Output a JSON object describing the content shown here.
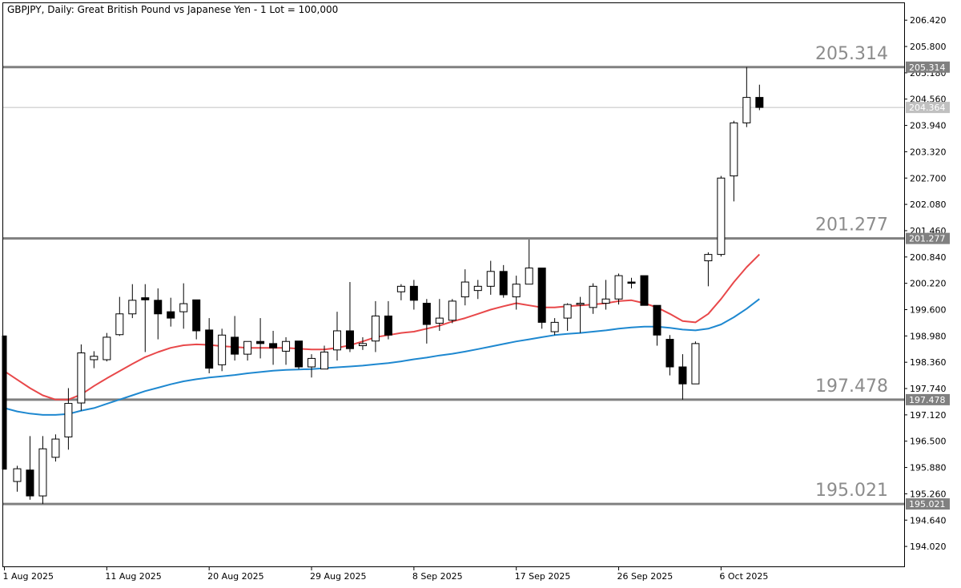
{
  "chart_data": {
    "type": "candlestick",
    "title": "GBPJPY, Daily:  Great British Pound vs Japanese Yen - 1 Lot = 100,000",
    "ylim": [
      193.55,
      206.82
    ],
    "y_ticks": [
      206.42,
      205.8,
      205.18,
      204.56,
      203.94,
      203.32,
      202.7,
      202.08,
      201.46,
      200.84,
      200.22,
      199.6,
      198.98,
      198.36,
      197.74,
      197.12,
      196.5,
      195.88,
      195.26,
      194.64,
      194.02
    ],
    "x_tick_labels": [
      {
        "label": "1 Aug 2025",
        "index": 0
      },
      {
        "label": "11 Aug 2025",
        "index": 8
      },
      {
        "label": "20 Aug 2025",
        "index": 16
      },
      {
        "label": "29 Aug 2025",
        "index": 24
      },
      {
        "label": "8 Sep 2025",
        "index": 32
      },
      {
        "label": "17 Sep 2025",
        "index": 40
      },
      {
        "label": "26 Sep 2025",
        "index": 48
      },
      {
        "label": "6 Oct 2025",
        "index": 56
      }
    ],
    "current_price": 204.364,
    "levels": [
      {
        "value": 205.314,
        "label": "205.314"
      },
      {
        "value": 201.277,
        "label": "201.277"
      },
      {
        "value": 197.478,
        "label": "197.478"
      },
      {
        "value": 195.021,
        "label": "195.021"
      }
    ],
    "candles": [
      {
        "o": 198.98,
        "h": 198.98,
        "l": 195.84,
        "c": 195.84
      },
      {
        "o": 195.55,
        "h": 195.92,
        "l": 195.31,
        "c": 195.85
      },
      {
        "o": 195.82,
        "h": 196.62,
        "l": 195.12,
        "c": 195.21
      },
      {
        "o": 195.21,
        "h": 196.62,
        "l": 195.02,
        "c": 196.32
      },
      {
        "o": 196.12,
        "h": 196.66,
        "l": 196.02,
        "c": 196.55
      },
      {
        "o": 196.6,
        "h": 197.75,
        "l": 196.3,
        "c": 197.39
      },
      {
        "o": 197.4,
        "h": 198.78,
        "l": 197.22,
        "c": 198.58
      },
      {
        "o": 198.42,
        "h": 198.62,
        "l": 198.22,
        "c": 198.5
      },
      {
        "o": 198.42,
        "h": 199.05,
        "l": 198.38,
        "c": 198.95
      },
      {
        "o": 199.01,
        "h": 199.9,
        "l": 198.98,
        "c": 199.5
      },
      {
        "o": 199.5,
        "h": 200.2,
        "l": 199.4,
        "c": 199.82
      },
      {
        "o": 199.88,
        "h": 200.2,
        "l": 198.6,
        "c": 199.83
      },
      {
        "o": 199.82,
        "h": 200.1,
        "l": 198.9,
        "c": 199.5
      },
      {
        "o": 199.55,
        "h": 199.88,
        "l": 199.2,
        "c": 199.4
      },
      {
        "o": 199.55,
        "h": 200.22,
        "l": 199.15,
        "c": 199.74
      },
      {
        "o": 199.83,
        "h": 199.82,
        "l": 198.9,
        "c": 199.1
      },
      {
        "o": 199.12,
        "h": 199.4,
        "l": 198.1,
        "c": 198.22
      },
      {
        "o": 198.3,
        "h": 199.15,
        "l": 198.15,
        "c": 199.0
      },
      {
        "o": 198.95,
        "h": 199.45,
        "l": 198.4,
        "c": 198.55
      },
      {
        "o": 198.55,
        "h": 198.85,
        "l": 198.4,
        "c": 198.85
      },
      {
        "o": 198.85,
        "h": 199.4,
        "l": 198.45,
        "c": 198.8
      },
      {
        "o": 198.8,
        "h": 199.1,
        "l": 198.3,
        "c": 198.7
      },
      {
        "o": 198.62,
        "h": 198.95,
        "l": 198.3,
        "c": 198.85
      },
      {
        "o": 198.86,
        "h": 198.86,
        "l": 198.2,
        "c": 198.25
      },
      {
        "o": 198.25,
        "h": 198.55,
        "l": 198.0,
        "c": 198.45
      },
      {
        "o": 198.2,
        "h": 198.75,
        "l": 198.25,
        "c": 198.6
      },
      {
        "o": 198.65,
        "h": 199.55,
        "l": 198.4,
        "c": 199.1
      },
      {
        "o": 199.1,
        "h": 200.25,
        "l": 198.6,
        "c": 198.68
      },
      {
        "o": 198.75,
        "h": 198.95,
        "l": 198.65,
        "c": 198.8
      },
      {
        "o": 198.86,
        "h": 199.8,
        "l": 198.6,
        "c": 199.45
      },
      {
        "o": 199.45,
        "h": 199.8,
        "l": 198.9,
        "c": 199.0
      },
      {
        "o": 200.02,
        "h": 200.2,
        "l": 199.82,
        "c": 200.15
      },
      {
        "o": 200.15,
        "h": 200.3,
        "l": 199.6,
        "c": 199.82
      },
      {
        "o": 199.75,
        "h": 199.85,
        "l": 198.8,
        "c": 199.25
      },
      {
        "o": 199.28,
        "h": 199.85,
        "l": 199.1,
        "c": 199.4
      },
      {
        "o": 199.35,
        "h": 199.85,
        "l": 199.28,
        "c": 199.8
      },
      {
        "o": 199.9,
        "h": 200.55,
        "l": 199.7,
        "c": 200.25
      },
      {
        "o": 200.05,
        "h": 200.3,
        "l": 199.85,
        "c": 200.15
      },
      {
        "o": 200.15,
        "h": 200.75,
        "l": 199.95,
        "c": 200.5
      },
      {
        "o": 200.5,
        "h": 200.65,
        "l": 199.88,
        "c": 199.95
      },
      {
        "o": 199.9,
        "h": 200.4,
        "l": 199.6,
        "c": 200.2
      },
      {
        "o": 200.2,
        "h": 201.25,
        "l": 200.2,
        "c": 200.58
      },
      {
        "o": 200.58,
        "h": 200.58,
        "l": 199.15,
        "c": 199.3
      },
      {
        "o": 199.08,
        "h": 199.4,
        "l": 199.0,
        "c": 199.3
      },
      {
        "o": 199.4,
        "h": 199.75,
        "l": 199.1,
        "c": 199.72
      },
      {
        "o": 199.72,
        "h": 199.9,
        "l": 199.05,
        "c": 199.75
      },
      {
        "o": 199.65,
        "h": 200.22,
        "l": 199.5,
        "c": 200.15
      },
      {
        "o": 199.75,
        "h": 200.3,
        "l": 199.6,
        "c": 199.85
      },
      {
        "o": 199.85,
        "h": 200.45,
        "l": 199.72,
        "c": 200.4
      },
      {
        "o": 200.25,
        "h": 200.35,
        "l": 200.1,
        "c": 200.22
      },
      {
        "o": 200.4,
        "h": 200.35,
        "l": 199.7,
        "c": 199.7
      },
      {
        "o": 199.7,
        "h": 199.65,
        "l": 198.75,
        "c": 199.0
      },
      {
        "o": 198.9,
        "h": 199.0,
        "l": 198.05,
        "c": 198.25
      },
      {
        "o": 198.25,
        "h": 198.55,
        "l": 197.48,
        "c": 197.85
      },
      {
        "o": 197.85,
        "h": 198.85,
        "l": 197.85,
        "c": 198.8
      },
      {
        "o": 200.75,
        "h": 200.95,
        "l": 200.15,
        "c": 200.9
      },
      {
        "o": 200.9,
        "h": 202.75,
        "l": 200.85,
        "c": 202.7
      },
      {
        "o": 202.75,
        "h": 204.05,
        "l": 202.15,
        "c": 204.0
      },
      {
        "o": 204.0,
        "h": 205.314,
        "l": 203.9,
        "c": 204.6
      },
      {
        "o": 204.6,
        "h": 204.9,
        "l": 204.3,
        "c": 204.364
      }
    ],
    "ma_fast": [
      198.15,
      197.95,
      197.75,
      197.58,
      197.48,
      197.48,
      197.6,
      197.8,
      197.98,
      198.15,
      198.32,
      198.48,
      198.6,
      198.7,
      198.76,
      198.78,
      198.77,
      198.74,
      198.72,
      198.7,
      198.7,
      198.7,
      198.7,
      198.68,
      198.66,
      198.66,
      198.7,
      198.76,
      198.85,
      198.95,
      199.0,
      199.05,
      199.08,
      199.15,
      199.22,
      199.32,
      199.4,
      199.5,
      199.6,
      199.68,
      199.75,
      199.7,
      199.65,
      199.65,
      199.68,
      199.7,
      199.72,
      199.75,
      199.8,
      199.82,
      199.75,
      199.65,
      199.5,
      199.33,
      199.3,
      199.5,
      199.85,
      200.25,
      200.6,
      200.9
    ],
    "ma_slow": [
      197.28,
      197.2,
      197.15,
      197.12,
      197.12,
      197.14,
      197.22,
      197.28,
      197.38,
      197.48,
      197.58,
      197.68,
      197.76,
      197.84,
      197.91,
      197.96,
      198.0,
      198.03,
      198.06,
      198.1,
      198.13,
      198.16,
      198.18,
      198.19,
      198.2,
      198.22,
      198.24,
      198.26,
      198.28,
      198.31,
      198.34,
      198.38,
      198.43,
      198.47,
      198.52,
      198.56,
      198.61,
      198.67,
      198.73,
      198.79,
      198.85,
      198.9,
      198.95,
      199.0,
      199.03,
      199.05,
      199.08,
      199.11,
      199.15,
      199.18,
      199.2,
      199.2,
      199.17,
      199.13,
      199.11,
      199.15,
      199.25,
      199.42,
      199.62,
      199.85
    ]
  }
}
